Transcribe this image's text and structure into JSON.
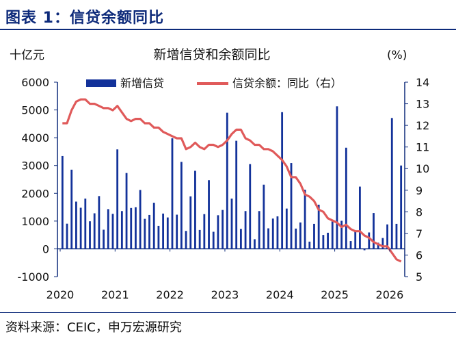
{
  "figure_title": "图表 1：信贷余额同比",
  "source": "资料来源：CEIC，申万宏源研究",
  "chart_data": {
    "type": "bar+line",
    "title": "新增信贷和余额同比",
    "left_unit": "十亿元",
    "right_unit": "(%)",
    "left_ylim": [
      -1000,
      6000
    ],
    "left_ticks": [
      "-1000",
      "0",
      "1000",
      "2000",
      "3000",
      "4000",
      "5000",
      "6000"
    ],
    "right_ylim": [
      5,
      14
    ],
    "right_ticks": [
      "5",
      "6",
      "7",
      "8",
      "9",
      "10",
      "11",
      "12",
      "13",
      "14"
    ],
    "x_ticks": [
      "2020",
      "2021",
      "2022",
      "2023",
      "2024",
      "2025",
      "2026"
    ],
    "start_month": "2020-01",
    "legend": [
      "新增信贷",
      "信贷余额：同比（右）"
    ],
    "colors": {
      "bar": "#13329a",
      "line": "#e05a5a",
      "axis": "#0d2a7a"
    },
    "bars": [
      3340,
      906,
      2850,
      1700,
      1480,
      1810,
      992,
      1280,
      1900,
      689,
      1430,
      1260,
      3580,
      1360,
      2730,
      1470,
      1500,
      2120,
      1080,
      1220,
      1660,
      826,
      1270,
      1130,
      3980,
      1230,
      3130,
      645,
      1890,
      2810,
      679,
      1250,
      2470,
      615,
      1210,
      1400,
      4900,
      1810,
      3890,
      719,
      1360,
      3050,
      346,
      1360,
      2310,
      738,
      1090,
      1170,
      4920,
      1450,
      3090,
      730,
      950,
      2130,
      260,
      900,
      1590,
      500,
      580,
      990,
      5130,
      1010,
      3640,
      280,
      620,
      2240,
      -50,
      590,
      1290,
      220,
      390,
      880,
      4710,
      900,
      3000
    ],
    "yoy": [
      12.1,
      12.1,
      12.7,
      13.1,
      13.2,
      13.2,
      13.0,
      13.0,
      12.9,
      12.8,
      12.8,
      12.7,
      12.9,
      12.6,
      12.3,
      12.2,
      12.3,
      12.3,
      12.1,
      12.1,
      11.9,
      11.9,
      11.7,
      11.6,
      11.5,
      11.4,
      11.4,
      10.9,
      11.0,
      11.2,
      11.0,
      10.9,
      11.1,
      11.1,
      11.0,
      11.1,
      11.3,
      11.6,
      11.8,
      11.8,
      11.4,
      11.3,
      11.1,
      11.1,
      10.9,
      10.9,
      10.8,
      10.6,
      10.4,
      10.1,
      9.6,
      9.6,
      9.3,
      8.8,
      8.7,
      8.5,
      8.1,
      8.0,
      7.7,
      7.6,
      7.5,
      7.3,
      7.4,
      7.2,
      7.1,
      7.1,
      6.9,
      6.8,
      6.6,
      6.5,
      6.4,
      6.4,
      6.1,
      5.8,
      5.7
    ]
  }
}
